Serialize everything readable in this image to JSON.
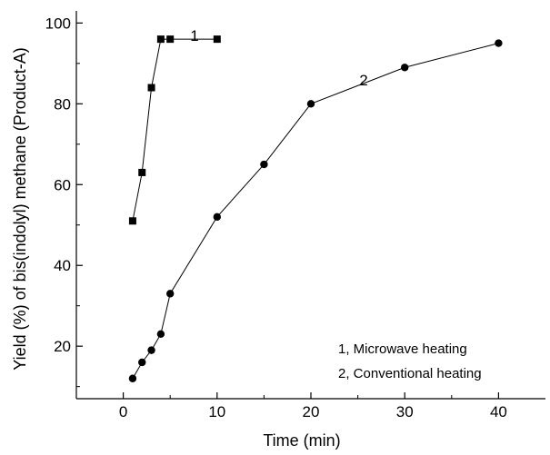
{
  "chart_data": {
    "type": "scatter",
    "xlabel": "Time (min)",
    "ylabel": "Yield (%) of bis(indolyl) methane (Product-A)",
    "xlim": [
      -5,
      45
    ],
    "ylim": [
      7,
      103
    ],
    "xticks": [
      0,
      10,
      20,
      30,
      40
    ],
    "yticks": [
      20,
      40,
      60,
      80,
      100
    ],
    "grid": false,
    "legend_position": "bottom-right",
    "series": [
      {
        "name": "1, Microwave heating",
        "tag": "1",
        "marker": "square",
        "connected": true,
        "x": [
          1,
          2,
          3,
          4,
          5,
          10
        ],
        "y": [
          51,
          63,
          84,
          96,
          96,
          96
        ]
      },
      {
        "name": "2, Conventional heating",
        "tag": "2",
        "marker": "circle",
        "connected": true,
        "x": [
          1,
          2,
          3,
          4,
          5,
          10,
          15,
          20,
          30,
          40
        ],
        "y": [
          12,
          16,
          19,
          23,
          33,
          52,
          65,
          80,
          89,
          95
        ]
      }
    ]
  }
}
